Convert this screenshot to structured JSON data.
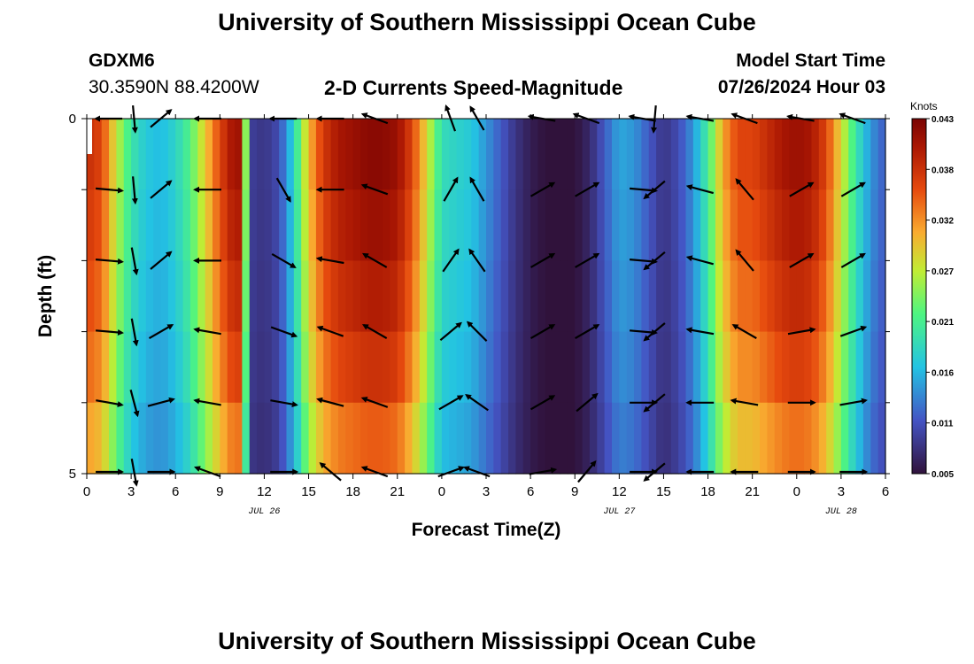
{
  "header": {
    "title": "University of Southern Mississippi Ocean Cube",
    "station": "GDXM6",
    "coords": "30.3590N  88.4200W",
    "subtitle": "2-D Currents Speed-Magnitude",
    "model_start_label": "Model Start Time",
    "model_start_value": "07/26/2024 Hour 03"
  },
  "footer": {
    "title": "University of Southern Mississippi Ocean Cube"
  },
  "chart_data": {
    "type": "heatmap",
    "title": "2-D Currents Speed-Magnitude",
    "xlabel": "Forecast Time(Z)",
    "ylabel": "Depth (ft)",
    "x_ticks": [
      "0",
      "3",
      "6",
      "9",
      "12",
      "15",
      "18",
      "21",
      "0",
      "3",
      "6",
      "9",
      "12",
      "15",
      "18",
      "21",
      "0",
      "3",
      "6"
    ],
    "x_range_hours": [
      0,
      54
    ],
    "date_labels": [
      {
        "label": "JUL 26",
        "hour": 12
      },
      {
        "label": "JUL 27",
        "hour": 36
      },
      {
        "label": "JUL 28",
        "hour": 51
      }
    ],
    "y_ticks": [
      "0",
      "5"
    ],
    "ylim": [
      0,
      5
    ],
    "colorbar": {
      "unit": "Knots",
      "ticks": [
        "0.043",
        "0.038",
        "0.032",
        "0.027",
        "0.021",
        "0.016",
        "0.011",
        "0.005"
      ],
      "range": [
        0.005,
        0.043
      ]
    },
    "depth_rows": 5,
    "speed_profile": {
      "hours": [
        0,
        1,
        2,
        3,
        4,
        5,
        6,
        7,
        8,
        9,
        10,
        10.5,
        11,
        12,
        13,
        14,
        15,
        16,
        17,
        18,
        19,
        20,
        21,
        22,
        23,
        24,
        25,
        26,
        27,
        28,
        29,
        30,
        31,
        32,
        33,
        34,
        35,
        36,
        37,
        38,
        39,
        40,
        41,
        42,
        43,
        44,
        45,
        46,
        47,
        48,
        49,
        50,
        51,
        52,
        53,
        54
      ],
      "speeds": [
        0.038,
        0.036,
        0.027,
        0.02,
        0.017,
        0.016,
        0.018,
        0.022,
        0.029,
        0.036,
        0.041,
        0.04,
        0.009,
        0.008,
        0.01,
        0.018,
        0.03,
        0.037,
        0.04,
        0.041,
        0.042,
        0.042,
        0.041,
        0.036,
        0.028,
        0.019,
        0.018,
        0.017,
        0.014,
        0.011,
        0.008,
        0.006,
        0.005,
        0.005,
        0.005,
        0.007,
        0.011,
        0.015,
        0.014,
        0.011,
        0.008,
        0.01,
        0.014,
        0.021,
        0.031,
        0.036,
        0.036,
        0.038,
        0.04,
        0.041,
        0.04,
        0.036,
        0.028,
        0.02,
        0.014,
        0.011
      ],
      "depth_factors": [
        1.0,
        0.97,
        0.93,
        0.88,
        0.8
      ]
    },
    "vectors": {
      "hours": [
        1.5,
        3.2,
        5.0,
        8.2,
        13.3,
        16.5,
        19.5,
        24.6,
        26.4,
        30.8,
        33.8,
        37.6,
        38.4,
        41.5,
        44.5,
        48.3,
        51.8
      ],
      "angles_by_row": [
        [
          180,
          85,
          -40,
          180,
          180,
          180,
          200,
          250,
          240,
          190,
          200,
          190,
          95,
          190,
          200,
          190,
          200
        ],
        [
          5,
          85,
          -40,
          180,
          60,
          180,
          200,
          300,
          240,
          330,
          330,
          5,
          140,
          195,
          230,
          330,
          330
        ],
        [
          5,
          80,
          -40,
          180,
          30,
          190,
          210,
          305,
          235,
          330,
          330,
          5,
          140,
          195,
          230,
          330,
          330
        ],
        [
          5,
          80,
          -30,
          190,
          20,
          200,
          210,
          320,
          225,
          330,
          330,
          5,
          140,
          190,
          210,
          350,
          340
        ],
        [
          10,
          75,
          -15,
          190,
          10,
          195,
          200,
          330,
          215,
          330,
          320,
          0,
          140,
          180,
          190,
          0,
          350
        ],
        [
          0,
          80,
          0,
          200,
          0,
          220,
          200,
          340,
          200,
          350,
          310,
          0,
          140,
          180,
          180,
          0,
          0
        ]
      ]
    }
  }
}
